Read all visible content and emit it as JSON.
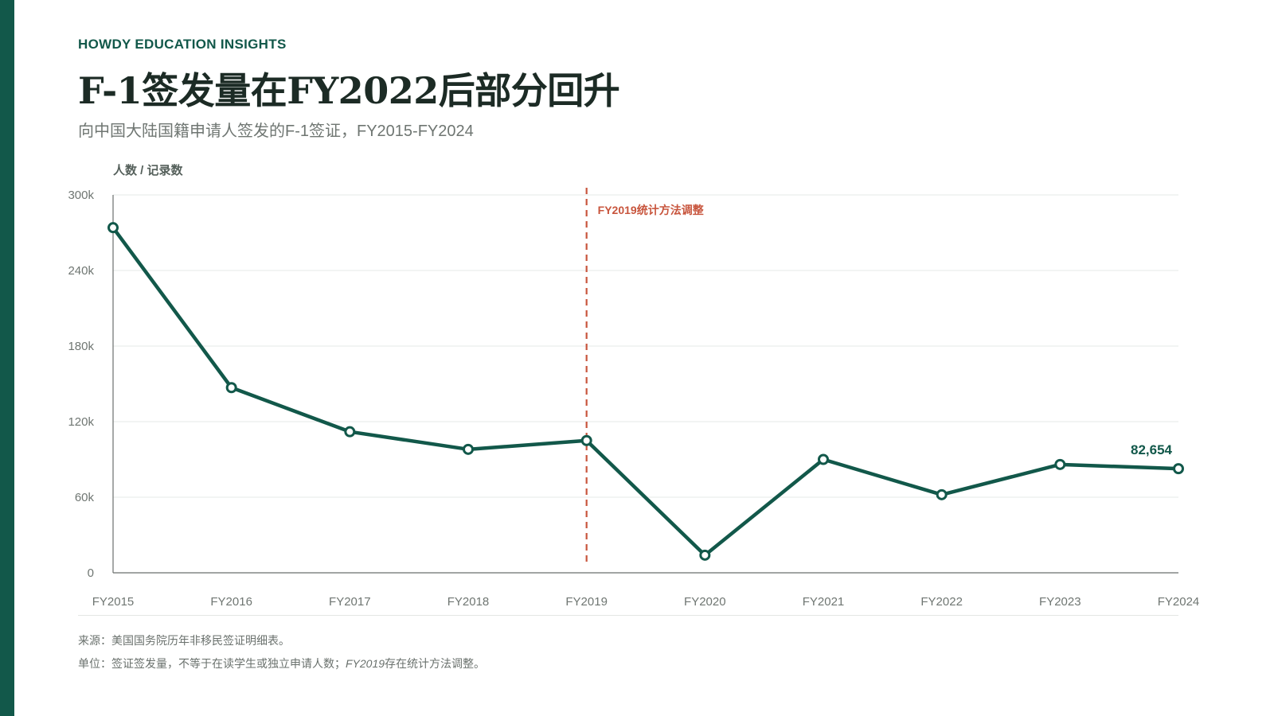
{
  "brand": "HOWDY EDUCATION INSIGHTS",
  "title": "F-1签发量在FY2022后部分回升",
  "subtitle": "向中国大陆国籍申请人签发的F-1签证，FY2015-FY2024",
  "colors": {
    "accent": "#12584a",
    "line": "#12584a",
    "annotation": "#c8553d",
    "grid": "#e6e8e7",
    "text": "#1c2b25",
    "muted": "#6f7672"
  },
  "chart_data": {
    "type": "line",
    "ylabel": "人数 / 记录数",
    "ylim": [
      0,
      300000
    ],
    "yticks": [
      0,
      60000,
      120000,
      180000,
      240000,
      300000
    ],
    "ytick_labels": [
      "0",
      "60k",
      "120k",
      "180k",
      "240k",
      "300k"
    ],
    "categories": [
      "FY2015",
      "FY2016",
      "FY2017",
      "FY2018",
      "FY2019",
      "FY2020",
      "FY2021",
      "FY2022",
      "FY2023",
      "FY2024"
    ],
    "series": [
      {
        "values": [
          274000,
          147000,
          112000,
          98000,
          105000,
          14000,
          90000,
          62000,
          86000,
          82654
        ]
      }
    ],
    "grid": true,
    "annotations": [
      {
        "type": "vline",
        "at": "FY2019",
        "label": "FY2019统计方法调整"
      },
      {
        "type": "point_label",
        "at": "FY2024",
        "label": "82,654"
      }
    ]
  },
  "notes": {
    "source": "来源：美国国务院历年非移民签证明细表。",
    "unit_prefix": "单位：签证签发量，不等于在读学生或独立申请人数；",
    "unit_italic": "FY2019",
    "unit_suffix": "存在统计方法调整。"
  }
}
